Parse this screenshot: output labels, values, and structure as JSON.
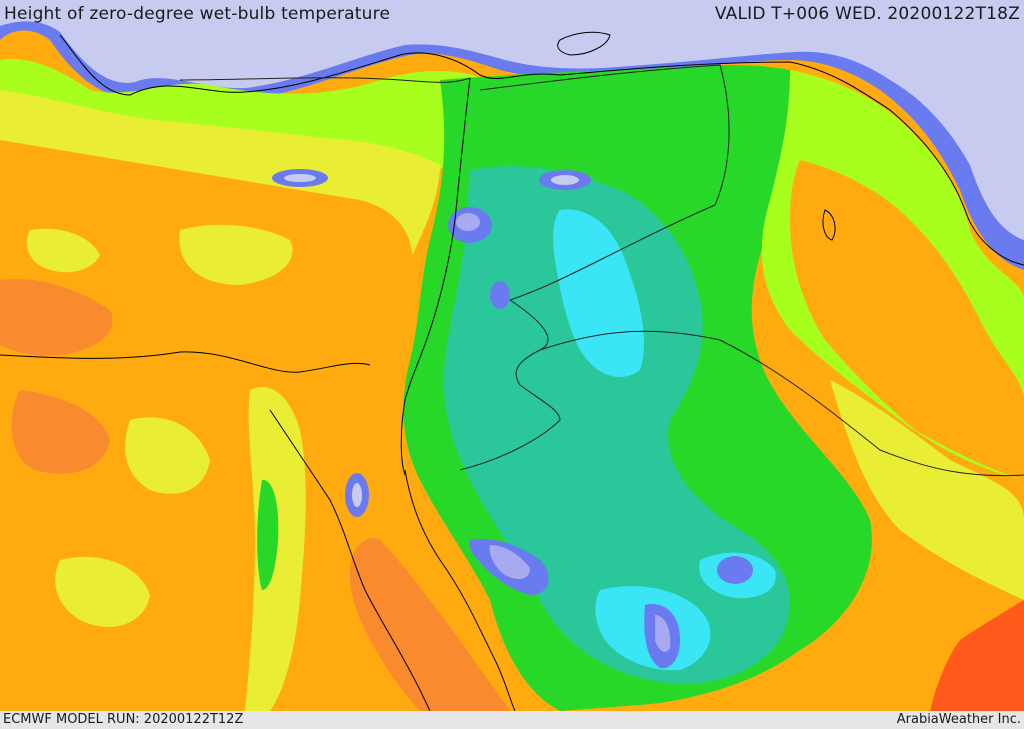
{
  "header": {
    "title": "Height of zero-degree wet-bulb temperature",
    "valid": "VALID T+006 WED. 20200122T18Z"
  },
  "footer": {
    "model_run": "ECMWF MODEL RUN: 20200122T12Z",
    "brand": "ArabiaWeather Inc."
  },
  "map": {
    "region": "Eastern Mediterranean and Middle East",
    "field": "zero-degree wet-bulb height",
    "colors": {
      "sea_low": "#c8cbf0",
      "blue": "#6a7bf0",
      "deep_blue": "#4a5cd8",
      "lavender": "#a8aaf0",
      "cyan": "#3ae6f5",
      "teal": "#2ac79a",
      "green": "#28d828",
      "lime": "#a8ff1e",
      "yellow": "#e9ee35",
      "orange": "#ffab10",
      "dark_orange": "#f98a2e",
      "red": "#ff5a1c",
      "coast": "#000000",
      "border": "#222222"
    }
  }
}
